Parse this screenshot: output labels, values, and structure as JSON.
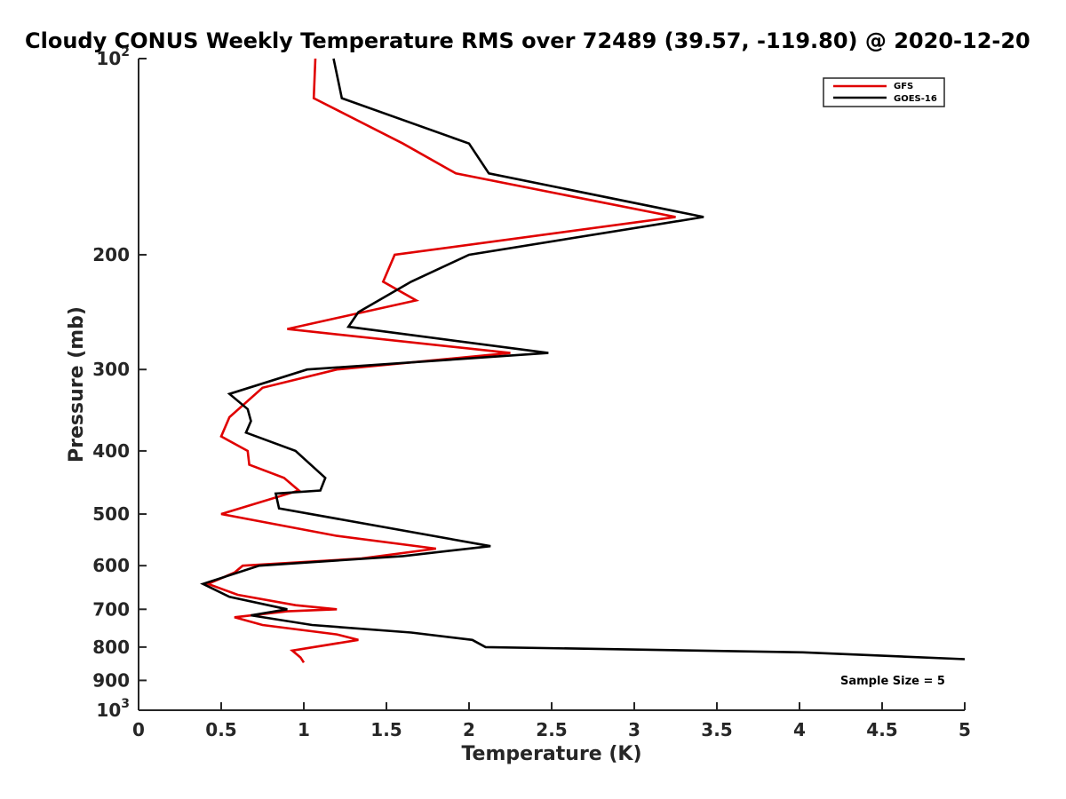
{
  "chart_data": {
    "type": "line",
    "title": "Cloudy CONUS Weekly Temperature RMS over 72489 (39.57, -119.80) @ 2020-12-20",
    "xlabel": "Temperature (K)",
    "ylabel": "Pressure (mb)",
    "xlim": [
      0,
      5
    ],
    "ylim": [
      1000,
      100
    ],
    "y_scale": "log",
    "y_reversed": true,
    "x_ticks": [
      {
        "value": 0,
        "label": "0"
      },
      {
        "value": 0.5,
        "label": "0.5"
      },
      {
        "value": 1,
        "label": "1"
      },
      {
        "value": 1.5,
        "label": "1.5"
      },
      {
        "value": 2,
        "label": "2"
      },
      {
        "value": 2.5,
        "label": "2.5"
      },
      {
        "value": 3,
        "label": "3"
      },
      {
        "value": 3.5,
        "label": "3.5"
      },
      {
        "value": 4,
        "label": "4"
      },
      {
        "value": 4.5,
        "label": "4.5"
      },
      {
        "value": 5,
        "label": "5"
      }
    ],
    "y_ticks": [
      {
        "value": 100,
        "base": "10",
        "exp": "2"
      },
      {
        "value": 200,
        "base": "200",
        "exp": ""
      },
      {
        "value": 300,
        "base": "300",
        "exp": ""
      },
      {
        "value": 400,
        "base": "400",
        "exp": ""
      },
      {
        "value": 500,
        "base": "500",
        "exp": ""
      },
      {
        "value": 600,
        "base": "600",
        "exp": ""
      },
      {
        "value": 700,
        "base": "700",
        "exp": ""
      },
      {
        "value": 800,
        "base": "800",
        "exp": ""
      },
      {
        "value": 900,
        "base": "900",
        "exp": ""
      },
      {
        "value": 1000,
        "base": "10",
        "exp": "3"
      }
    ],
    "grid": false,
    "legend_position": "top-right",
    "annotation": "Sample Size = 5",
    "series": [
      {
        "name": "GFS",
        "color": "#e00000",
        "points": [
          {
            "t": 1.07,
            "p": 100
          },
          {
            "t": 1.06,
            "p": 115
          },
          {
            "t": 1.6,
            "p": 135
          },
          {
            "t": 1.92,
            "p": 150
          },
          {
            "t": 3.25,
            "p": 175
          },
          {
            "t": 1.55,
            "p": 200
          },
          {
            "t": 1.48,
            "p": 220
          },
          {
            "t": 1.68,
            "p": 235
          },
          {
            "t": 0.9,
            "p": 260
          },
          {
            "t": 2.25,
            "p": 283
          },
          {
            "t": 1.2,
            "p": 300
          },
          {
            "t": 0.75,
            "p": 320
          },
          {
            "t": 0.55,
            "p": 355
          },
          {
            "t": 0.5,
            "p": 380
          },
          {
            "t": 0.66,
            "p": 400
          },
          {
            "t": 0.67,
            "p": 420
          },
          {
            "t": 0.88,
            "p": 440
          },
          {
            "t": 0.97,
            "p": 460
          },
          {
            "t": 0.5,
            "p": 500
          },
          {
            "t": 1.2,
            "p": 540
          },
          {
            "t": 1.8,
            "p": 565
          },
          {
            "t": 1.35,
            "p": 585
          },
          {
            "t": 0.63,
            "p": 600
          },
          {
            "t": 0.58,
            "p": 615
          },
          {
            "t": 0.42,
            "p": 640
          },
          {
            "t": 0.6,
            "p": 665
          },
          {
            "t": 0.95,
            "p": 690
          },
          {
            "t": 1.2,
            "p": 700
          },
          {
            "t": 0.9,
            "p": 705
          },
          {
            "t": 0.58,
            "p": 720
          },
          {
            "t": 0.75,
            "p": 740
          },
          {
            "t": 1.2,
            "p": 765
          },
          {
            "t": 1.33,
            "p": 780
          },
          {
            "t": 0.93,
            "p": 810
          },
          {
            "t": 0.98,
            "p": 830
          },
          {
            "t": 1.0,
            "p": 845
          }
        ]
      },
      {
        "name": "GOES-16",
        "color": "#000000",
        "points": [
          {
            "t": 1.18,
            "p": 100
          },
          {
            "t": 1.23,
            "p": 115
          },
          {
            "t": 2.0,
            "p": 135
          },
          {
            "t": 2.12,
            "p": 150
          },
          {
            "t": 3.42,
            "p": 175
          },
          {
            "t": 2.0,
            "p": 200
          },
          {
            "t": 1.65,
            "p": 220
          },
          {
            "t": 1.33,
            "p": 245
          },
          {
            "t": 1.27,
            "p": 258
          },
          {
            "t": 2.48,
            "p": 283
          },
          {
            "t": 1.02,
            "p": 300
          },
          {
            "t": 0.55,
            "p": 327
          },
          {
            "t": 0.66,
            "p": 345
          },
          {
            "t": 0.68,
            "p": 360
          },
          {
            "t": 0.65,
            "p": 375
          },
          {
            "t": 0.95,
            "p": 400
          },
          {
            "t": 1.13,
            "p": 440
          },
          {
            "t": 1.1,
            "p": 460
          },
          {
            "t": 0.83,
            "p": 465
          },
          {
            "t": 0.85,
            "p": 490
          },
          {
            "t": 2.13,
            "p": 560
          },
          {
            "t": 1.6,
            "p": 580
          },
          {
            "t": 0.73,
            "p": 600
          },
          {
            "t": 0.6,
            "p": 615
          },
          {
            "t": 0.39,
            "p": 640
          },
          {
            "t": 0.55,
            "p": 670
          },
          {
            "t": 0.9,
            "p": 700
          },
          {
            "t": 0.68,
            "p": 715
          },
          {
            "t": 1.05,
            "p": 740
          },
          {
            "t": 1.65,
            "p": 760
          },
          {
            "t": 2.02,
            "p": 780
          },
          {
            "t": 2.1,
            "p": 800
          },
          {
            "t": 4.02,
            "p": 815
          },
          {
            "t": 5.0,
            "p": 835
          }
        ]
      }
    ]
  }
}
